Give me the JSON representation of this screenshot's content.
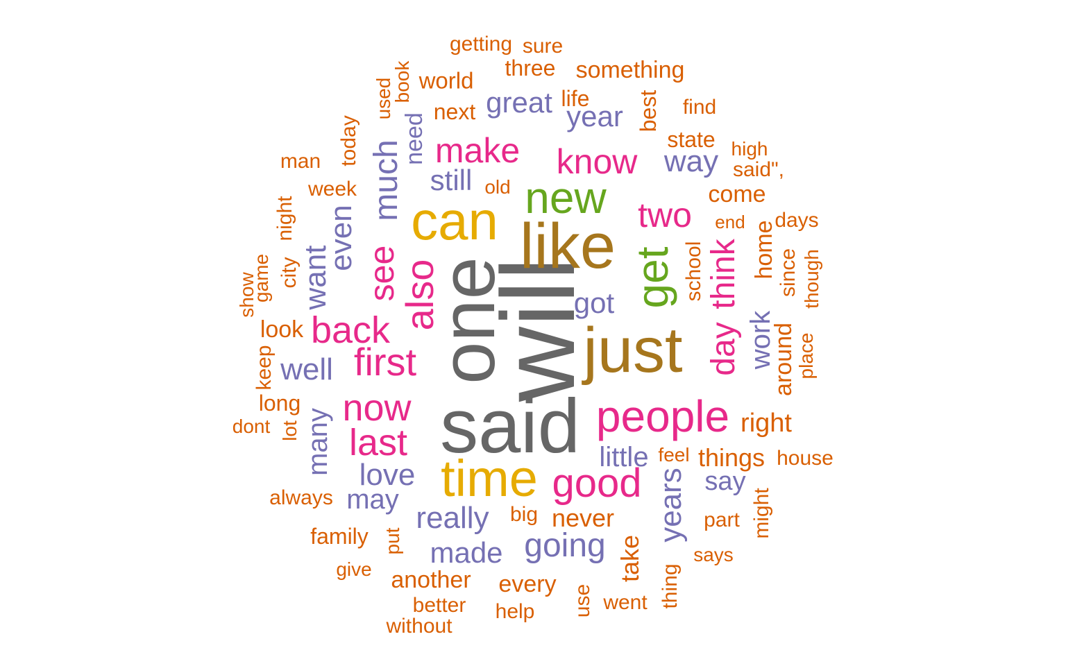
{
  "palette": {
    "gray": "#666666",
    "gold": "#E6AB02",
    "brown": "#A6761D",
    "green": "#66A61E",
    "pink": "#E7298A",
    "purple": "#7570B3",
    "orange": "#D95F02"
  },
  "words": [
    {
      "text": "will",
      "color": "gray",
      "rotated": true
    },
    {
      "text": "said",
      "color": "gray",
      "rotated": false
    },
    {
      "text": "one",
      "color": "gray",
      "rotated": true
    },
    {
      "text": "just",
      "color": "brown",
      "rotated": false
    },
    {
      "text": "like",
      "color": "brown",
      "rotated": false
    },
    {
      "text": "can",
      "color": "gold",
      "rotated": false
    },
    {
      "text": "time",
      "color": "gold",
      "rotated": false
    },
    {
      "text": "new",
      "color": "green",
      "rotated": false
    },
    {
      "text": "get",
      "color": "green",
      "rotated": true
    },
    {
      "text": "people",
      "color": "pink",
      "rotated": false
    },
    {
      "text": "good",
      "color": "pink",
      "rotated": false
    },
    {
      "text": "also",
      "color": "pink",
      "rotated": true
    },
    {
      "text": "first",
      "color": "pink",
      "rotated": false
    },
    {
      "text": "back",
      "color": "pink",
      "rotated": false
    },
    {
      "text": "now",
      "color": "pink",
      "rotated": false
    },
    {
      "text": "last",
      "color": "pink",
      "rotated": false
    },
    {
      "text": "see",
      "color": "pink",
      "rotated": true
    },
    {
      "text": "make",
      "color": "pink",
      "rotated": false
    },
    {
      "text": "know",
      "color": "pink",
      "rotated": false
    },
    {
      "text": "two",
      "color": "pink",
      "rotated": false
    },
    {
      "text": "day",
      "color": "pink",
      "rotated": true
    },
    {
      "text": "think",
      "color": "pink",
      "rotated": true
    },
    {
      "text": "much",
      "color": "purple",
      "rotated": true
    },
    {
      "text": "even",
      "color": "purple",
      "rotated": true
    },
    {
      "text": "want",
      "color": "purple",
      "rotated": true
    },
    {
      "text": "well",
      "color": "purple",
      "rotated": false
    },
    {
      "text": "still",
      "color": "purple",
      "rotated": false
    },
    {
      "text": "great",
      "color": "purple",
      "rotated": false
    },
    {
      "text": "year",
      "color": "purple",
      "rotated": false
    },
    {
      "text": "way",
      "color": "purple",
      "rotated": false
    },
    {
      "text": "got",
      "color": "purple",
      "rotated": false
    },
    {
      "text": "work",
      "color": "purple",
      "rotated": true
    },
    {
      "text": "many",
      "color": "purple",
      "rotated": true
    },
    {
      "text": "love",
      "color": "purple",
      "rotated": false
    },
    {
      "text": "may",
      "color": "purple",
      "rotated": false
    },
    {
      "text": "really",
      "color": "purple",
      "rotated": false
    },
    {
      "text": "made",
      "color": "purple",
      "rotated": false
    },
    {
      "text": "going",
      "color": "purple",
      "rotated": false
    },
    {
      "text": "little",
      "color": "purple",
      "rotated": false
    },
    {
      "text": "years",
      "color": "purple",
      "rotated": true
    },
    {
      "text": "say",
      "color": "purple",
      "rotated": false
    },
    {
      "text": "need",
      "color": "purple",
      "rotated": true
    },
    {
      "text": "getting",
      "color": "orange",
      "rotated": false
    },
    {
      "text": "sure",
      "color": "orange",
      "rotated": false
    },
    {
      "text": "three",
      "color": "orange",
      "rotated": false
    },
    {
      "text": "something",
      "color": "orange",
      "rotated": false
    },
    {
      "text": "world",
      "color": "orange",
      "rotated": false
    },
    {
      "text": "book",
      "color": "orange",
      "rotated": true
    },
    {
      "text": "used",
      "color": "orange",
      "rotated": true
    },
    {
      "text": "life",
      "color": "orange",
      "rotated": false
    },
    {
      "text": "next",
      "color": "orange",
      "rotated": false
    },
    {
      "text": "best",
      "color": "orange",
      "rotated": true
    },
    {
      "text": "find",
      "color": "orange",
      "rotated": false
    },
    {
      "text": "today",
      "color": "orange",
      "rotated": true
    },
    {
      "text": "state",
      "color": "orange",
      "rotated": false
    },
    {
      "text": "high",
      "color": "orange",
      "rotated": false
    },
    {
      "text": "man",
      "color": "orange",
      "rotated": false
    },
    {
      "text": "said\",",
      "color": "orange",
      "rotated": false
    },
    {
      "text": "week",
      "color": "orange",
      "rotated": false
    },
    {
      "text": "old",
      "color": "orange",
      "rotated": false
    },
    {
      "text": "come",
      "color": "orange",
      "rotated": false
    },
    {
      "text": "night",
      "color": "orange",
      "rotated": true
    },
    {
      "text": "end",
      "color": "orange",
      "rotated": false
    },
    {
      "text": "days",
      "color": "orange",
      "rotated": false
    },
    {
      "text": "home",
      "color": "orange",
      "rotated": true
    },
    {
      "text": "city",
      "color": "orange",
      "rotated": true
    },
    {
      "text": "game",
      "color": "orange",
      "rotated": true
    },
    {
      "text": "show",
      "color": "orange",
      "rotated": true
    },
    {
      "text": "school",
      "color": "orange",
      "rotated": true
    },
    {
      "text": "since",
      "color": "orange",
      "rotated": true
    },
    {
      "text": "though",
      "color": "orange",
      "rotated": true
    },
    {
      "text": "look",
      "color": "orange",
      "rotated": false
    },
    {
      "text": "keep",
      "color": "orange",
      "rotated": true
    },
    {
      "text": "around",
      "color": "orange",
      "rotated": true
    },
    {
      "text": "place",
      "color": "orange",
      "rotated": true
    },
    {
      "text": "long",
      "color": "orange",
      "rotated": false
    },
    {
      "text": "dont",
      "color": "orange",
      "rotated": false
    },
    {
      "text": "lot",
      "color": "orange",
      "rotated": true
    },
    {
      "text": "right",
      "color": "orange",
      "rotated": false
    },
    {
      "text": "feel",
      "color": "orange",
      "rotated": false
    },
    {
      "text": "things",
      "color": "orange",
      "rotated": false
    },
    {
      "text": "house",
      "color": "orange",
      "rotated": false
    },
    {
      "text": "always",
      "color": "orange",
      "rotated": false
    },
    {
      "text": "might",
      "color": "orange",
      "rotated": true
    },
    {
      "text": "big",
      "color": "orange",
      "rotated": false
    },
    {
      "text": "never",
      "color": "orange",
      "rotated": false
    },
    {
      "text": "part",
      "color": "orange",
      "rotated": false
    },
    {
      "text": "family",
      "color": "orange",
      "rotated": false
    },
    {
      "text": "put",
      "color": "orange",
      "rotated": true
    },
    {
      "text": "take",
      "color": "orange",
      "rotated": true
    },
    {
      "text": "says",
      "color": "orange",
      "rotated": false
    },
    {
      "text": "give",
      "color": "orange",
      "rotated": false
    },
    {
      "text": "another",
      "color": "orange",
      "rotated": false
    },
    {
      "text": "every",
      "color": "orange",
      "rotated": false
    },
    {
      "text": "thing",
      "color": "orange",
      "rotated": true
    },
    {
      "text": "better",
      "color": "orange",
      "rotated": false
    },
    {
      "text": "help",
      "color": "orange",
      "rotated": false
    },
    {
      "text": "use",
      "color": "orange",
      "rotated": true
    },
    {
      "text": "went",
      "color": "orange",
      "rotated": false
    },
    {
      "text": "without",
      "color": "orange",
      "rotated": false
    }
  ]
}
